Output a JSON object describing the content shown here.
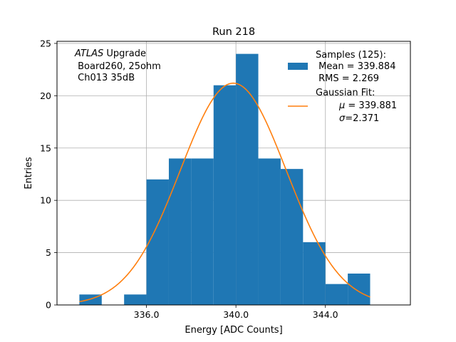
{
  "chart_data": {
    "type": "bar",
    "title": "Run 218",
    "xlabel": "Energy [ADC Counts]",
    "ylabel": "Entries",
    "xlim": [
      332.0,
      347.8
    ],
    "ylim": [
      0,
      25.2
    ],
    "xticks": [
      336.0,
      340.0,
      344.0
    ],
    "xtick_labels": [
      "336.0",
      "340.0",
      "344.0"
    ],
    "yticks": [
      0,
      5,
      10,
      15,
      20,
      25
    ],
    "ytick_labels": [
      "0",
      "5",
      "10",
      "15",
      "20",
      "25"
    ],
    "grid": true,
    "histogram": {
      "name": "Samples (125)",
      "color": "#1f77b4",
      "bin_width": 1.0,
      "bins": [
        {
          "left": 333,
          "count": 1
        },
        {
          "left": 334,
          "count": 0
        },
        {
          "left": 335,
          "count": 1
        },
        {
          "left": 336,
          "count": 12
        },
        {
          "left": 337,
          "count": 14
        },
        {
          "left": 338,
          "count": 14
        },
        {
          "left": 339,
          "count": 21
        },
        {
          "left": 340,
          "count": 24
        },
        {
          "left": 341,
          "count": 14
        },
        {
          "left": 342,
          "count": 13
        },
        {
          "left": 343,
          "count": 6
        },
        {
          "left": 344,
          "count": 2
        },
        {
          "left": 345,
          "count": 3
        }
      ]
    },
    "fit": {
      "name": "Gaussian Fit",
      "color": "#ff7f0e",
      "mu": 339.881,
      "sigma": 2.371,
      "amplitude": 21.2,
      "x_range": [
        333.0,
        346.0
      ]
    },
    "annotation": {
      "line1_italic": "ATLAS",
      "line1_rest": " Upgrade",
      "line2": " Board260, 25ohm",
      "line3": " Ch013 35dB"
    },
    "legend": {
      "location": "top-right",
      "samples_title": "Samples (125):",
      "samples_mean": " Mean = 339.884",
      "samples_rms": " RMS = 2.269",
      "fit_title": "Gaussian Fit:",
      "fit_mu": " = 339.881",
      "fit_sigma": "=2.371",
      "mu_symbol": "μ",
      "sigma_symbol": "σ"
    }
  }
}
